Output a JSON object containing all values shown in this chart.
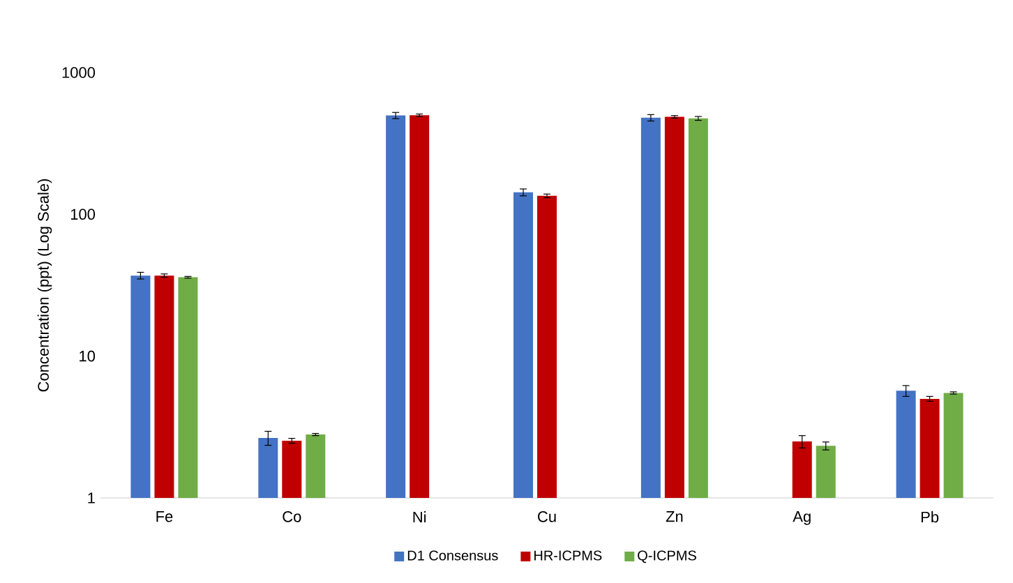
{
  "chart_data": {
    "type": "bar",
    "ylabel": "Concentration (ppt) (Log Scale)",
    "categories": [
      "Fe",
      "Co",
      "Ni",
      "Cu",
      "Zn",
      "Ag",
      "Pb"
    ],
    "log": true,
    "ylim": [
      1,
      1000
    ],
    "yticks": [
      1,
      10,
      100,
      1000
    ],
    "legend": "bottom",
    "series": [
      {
        "name": "D1 Consensus",
        "color": "#4472c4",
        "values": [
          37,
          2.65,
          498,
          143,
          480,
          null,
          5.7
        ],
        "errors": [
          2,
          0.3,
          25,
          8,
          25,
          null,
          0.5
        ]
      },
      {
        "name": "HR-ICPMS",
        "color": "#c00000",
        "values": [
          37,
          2.53,
          500,
          135,
          487,
          2.5,
          5.0
        ],
        "errors": [
          1,
          0.1,
          10,
          4,
          10,
          0.25,
          0.2
        ]
      },
      {
        "name": "Q-ICPMS",
        "color": "#70ad47",
        "values": [
          36,
          2.8,
          null,
          null,
          475,
          2.33,
          5.5
        ],
        "errors": [
          0.5,
          0.05,
          null,
          null,
          15,
          0.15,
          0.1
        ]
      }
    ]
  }
}
